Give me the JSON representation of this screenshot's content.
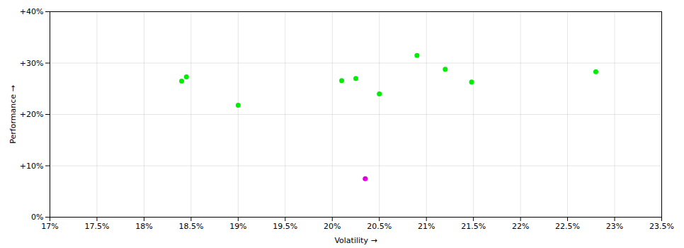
{
  "chart_data": {
    "type": "scatter",
    "xlabel": "Volatility",
    "ylabel": "Performance",
    "xlim": [
      0.17,
      0.235
    ],
    "ylim": [
      0.0,
      0.4
    ],
    "xticks": [
      {
        "value": 0.17,
        "label": "17%"
      },
      {
        "value": 0.175,
        "label": "17.5%"
      },
      {
        "value": 0.18,
        "label": "18%"
      },
      {
        "value": 0.185,
        "label": "18.5%"
      },
      {
        "value": 0.19,
        "label": "19%"
      },
      {
        "value": 0.195,
        "label": "19.5%"
      },
      {
        "value": 0.2,
        "label": "20%"
      },
      {
        "value": 0.205,
        "label": "20.5%"
      },
      {
        "value": 0.21,
        "label": "21%"
      },
      {
        "value": 0.215,
        "label": "21.5%"
      },
      {
        "value": 0.22,
        "label": "22%"
      },
      {
        "value": 0.225,
        "label": "22.5%"
      },
      {
        "value": 0.23,
        "label": "23%"
      },
      {
        "value": 0.235,
        "label": "23.5%"
      }
    ],
    "yticks": [
      {
        "value": 0.0,
        "label": "0%"
      },
      {
        "value": 0.1,
        "label": "+10%"
      },
      {
        "value": 0.2,
        "label": "+20%"
      },
      {
        "value": 0.3,
        "label": "+30%"
      },
      {
        "value": 0.4,
        "label": "+40%"
      }
    ],
    "grid": true,
    "series": [
      {
        "color": "#00ee00",
        "x": [
          0.184,
          0.1845,
          0.19,
          0.201,
          0.2025,
          0.205,
          0.209,
          0.212,
          0.2148,
          0.228
        ],
        "values": [
          0.265,
          0.273,
          0.218,
          0.266,
          0.27,
          0.24,
          0.315,
          0.288,
          0.263,
          0.283
        ]
      },
      {
        "color": "#dd00dd",
        "x": [
          0.2035
        ],
        "values": [
          0.075
        ]
      }
    ]
  }
}
